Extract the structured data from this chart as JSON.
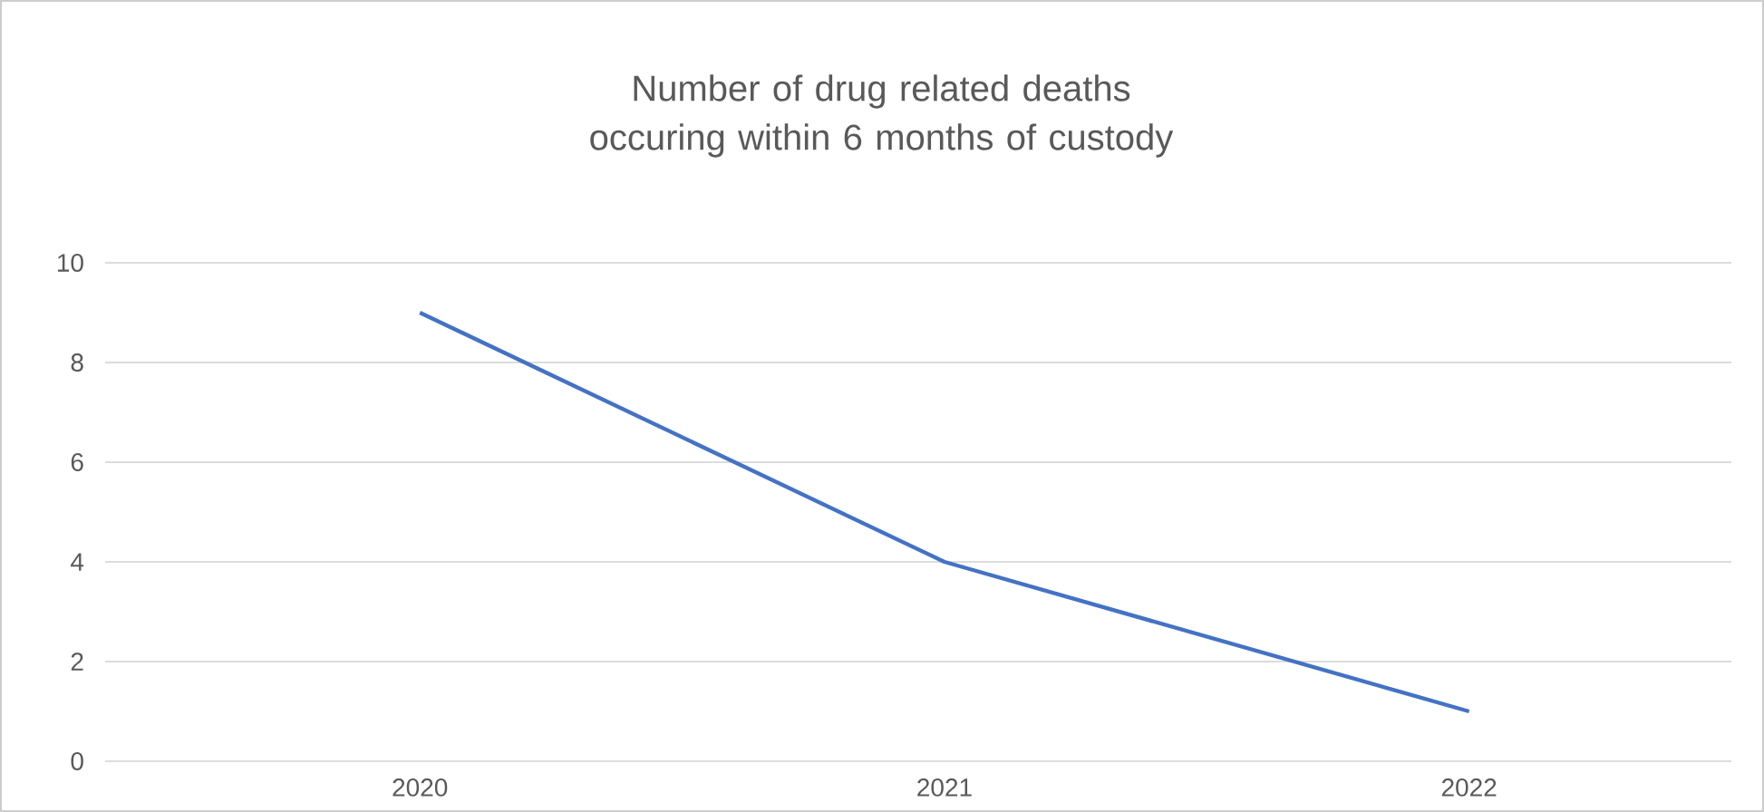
{
  "chart_data": {
    "type": "line",
    "title": "Number of drug related deaths occuring within 6 months of custody",
    "categories": [
      "2020",
      "2021",
      "2022"
    ],
    "values": [
      9,
      4,
      1
    ],
    "color": "#4472c4",
    "ylim": [
      0,
      10
    ],
    "yticks": [
      0,
      2,
      4,
      6,
      8,
      10
    ],
    "grid": "y",
    "marker": "none"
  }
}
